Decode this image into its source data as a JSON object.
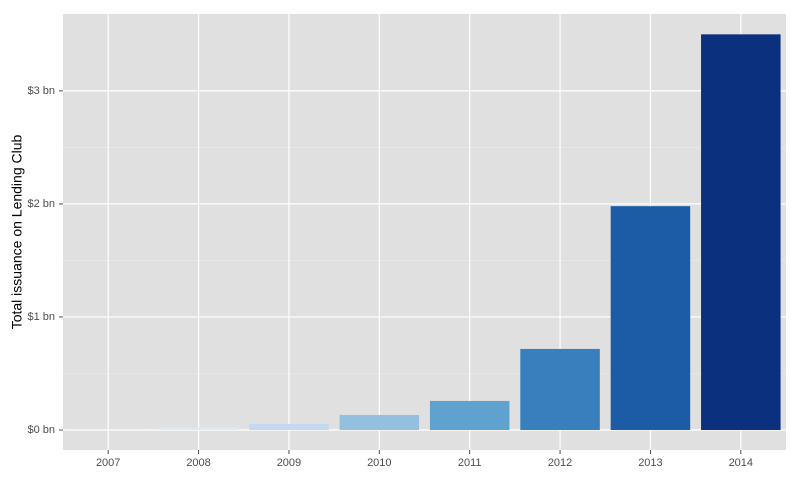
{
  "chart_data": {
    "type": "bar",
    "y_label": "Total issuance on Lending Club",
    "categories": [
      "2007",
      "2008",
      "2009",
      "2010",
      "2011",
      "2012",
      "2013",
      "2014"
    ],
    "values": [
      0.005,
      0.02,
      0.053,
      0.133,
      0.257,
      0.717,
      1.98,
      3.5
    ],
    "colors": [
      "#f7fbff",
      "#dce9f6",
      "#c2d9ef",
      "#92c0de",
      "#5fa2cf",
      "#3880bd",
      "#1c5ca6",
      "#0b307d"
    ],
    "ylim": [
      -0.177,
      3.68
    ],
    "yticks": [
      {
        "value": 0,
        "label": "$0 bn"
      },
      {
        "value": 1,
        "label": "$1 bn"
      },
      {
        "value": 2,
        "label": "$2 bn"
      },
      {
        "value": 3,
        "label": "$3 bn"
      }
    ],
    "grid": true
  }
}
